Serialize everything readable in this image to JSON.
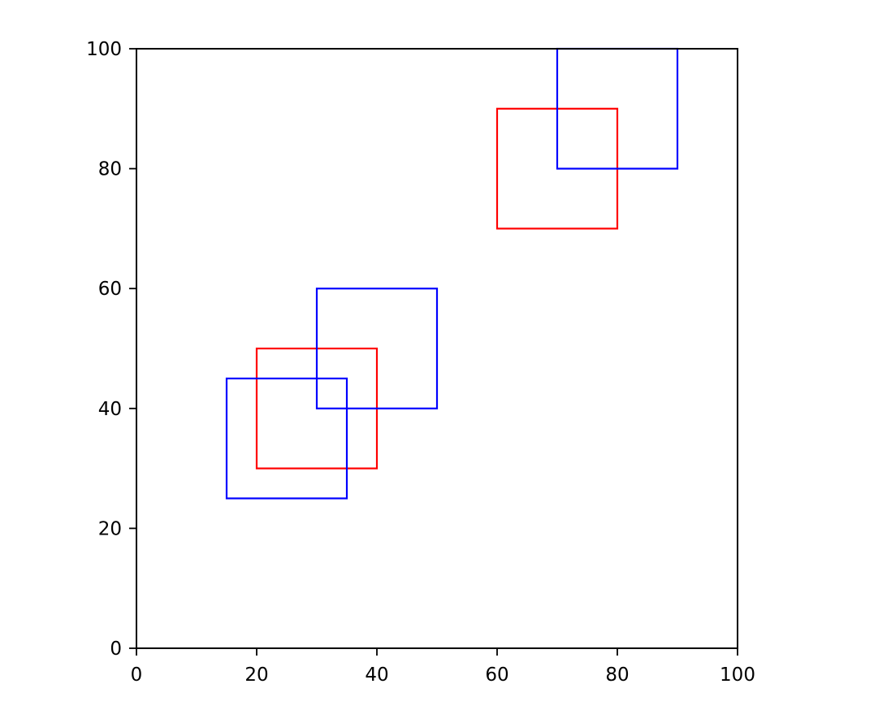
{
  "chart_data": {
    "type": "rectangles",
    "title": "",
    "xlabel": "",
    "ylabel": "",
    "xlim": [
      0,
      100
    ],
    "ylim": [
      0,
      100
    ],
    "xticks": [
      0,
      20,
      40,
      60,
      80,
      100
    ],
    "yticks": [
      0,
      20,
      40,
      60,
      80,
      100
    ],
    "grid": false,
    "legend": "none",
    "series": [
      {
        "color": "#ff0000",
        "rects": [
          {
            "x0": 20,
            "y0": 30,
            "x1": 40,
            "y1": 50
          },
          {
            "x0": 60,
            "y0": 70,
            "x1": 80,
            "y1": 90
          }
        ]
      },
      {
        "color": "#0000ff",
        "rects": [
          {
            "x0": 15,
            "y0": 25,
            "x1": 35,
            "y1": 45
          },
          {
            "x0": 30,
            "y0": 40,
            "x1": 50,
            "y1": 60
          },
          {
            "x0": 70,
            "y0": 80,
            "x1": 90,
            "y1": 100
          }
        ]
      }
    ]
  }
}
